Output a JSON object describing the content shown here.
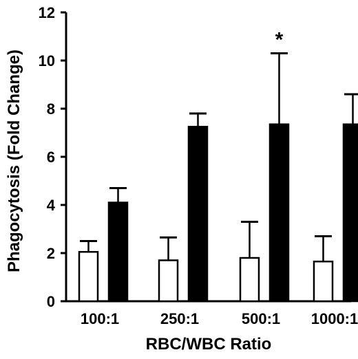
{
  "chart_data": {
    "type": "bar",
    "title": "",
    "xlabel": "RBC/WBC Ratio",
    "ylabel": "Phagocytosis (Fold Change)",
    "categories": [
      "100:1",
      "250:1",
      "500:1",
      "1000:1"
    ],
    "series": [
      {
        "values": [
          2.05,
          1.7,
          1.8,
          1.65
        ],
        "errors": [
          0.45,
          0.95,
          1.5,
          1.05
        ],
        "fill": "#ffffff"
      },
      {
        "values": [
          4.1,
          7.25,
          7.35,
          7.35
        ],
        "errors": [
          0.6,
          0.55,
          2.95,
          1.25
        ],
        "fill": "#000000"
      }
    ],
    "yticks": [
      "0",
      "2",
      "4",
      "6",
      "8",
      "10",
      "12"
    ],
    "ylim": [
      0,
      12
    ],
    "grid": false,
    "legend": "none",
    "annotations": [
      {
        "text": "*",
        "category": "500:1",
        "series": 1
      }
    ]
  }
}
